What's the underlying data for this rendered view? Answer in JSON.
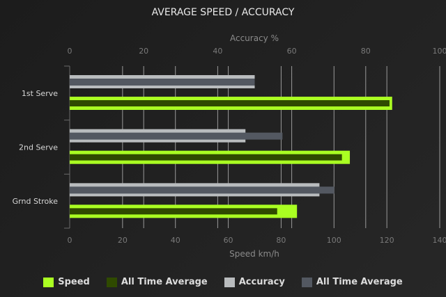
{
  "chart_data": {
    "type": "bar",
    "orientation": "horizontal",
    "title": "AVERAGE SPEED / ACCURACY",
    "categories": [
      "1st Serve",
      "2nd Serve",
      "Grnd Stroke"
    ],
    "x_bottom": {
      "label": "Speed km/h",
      "range": [
        0,
        140
      ],
      "ticks": [
        0,
        20,
        40,
        60,
        80,
        100,
        120,
        140
      ]
    },
    "x_top": {
      "label": "Accuracy %",
      "range": [
        0,
        100
      ],
      "ticks": [
        0,
        20,
        40,
        60,
        80,
        100
      ]
    },
    "grid": true,
    "legend_position": "bottom",
    "series": [
      {
        "name": "Speed",
        "axis": "speed",
        "color": "#aaff22",
        "values": [
          122,
          106,
          86
        ]
      },
      {
        "name": "All Time Average",
        "axis": "speed",
        "color": "#2f4a00",
        "values": [
          121,
          103,
          78.5
        ]
      },
      {
        "name": "Accuracy",
        "axis": "accuracy",
        "color": "#b9bcbe",
        "values": [
          50,
          47.5,
          67.5
        ]
      },
      {
        "name": "All Time Average",
        "axis": "accuracy",
        "color": "#535861",
        "values": [
          50,
          57.5,
          71.5
        ]
      }
    ]
  }
}
